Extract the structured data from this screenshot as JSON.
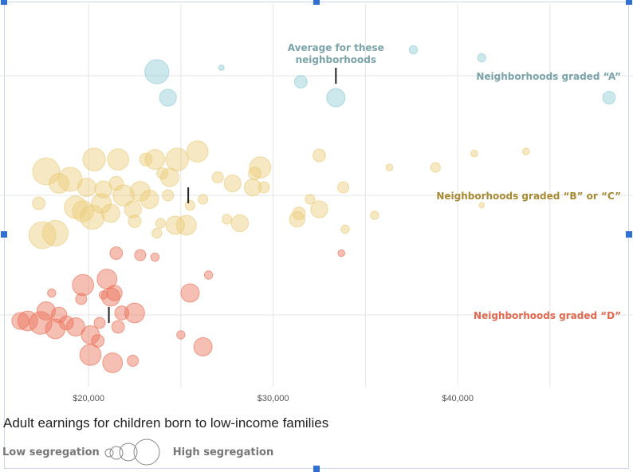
{
  "chart_data": {
    "type": "scatter",
    "title": "",
    "xlabel": "Adult earnings for children born to low-income families",
    "ylabel": "",
    "xlim": [
      15200,
      49500
    ],
    "x_ticks": [
      20000,
      30000,
      40000
    ],
    "x_tick_labels": [
      "$20,000",
      "$30,000",
      "$40,000"
    ],
    "grid": true,
    "legend": {
      "low_label": "Low segregation",
      "high_label": "High segregation"
    },
    "annotation": "Average for these neighborhoods",
    "annotation_lines": [
      "Average for these",
      "neighborhoods"
    ],
    "series": [
      {
        "name": "Neighborhoods graded “A”",
        "color": "#8fcbd4",
        "label_color": "#7aa3a8",
        "average": 33400,
        "points": [
          {
            "x": 24300,
            "y": 0.55,
            "s": 0.45
          },
          {
            "x": 23700,
            "y": -0.1,
            "s": 0.7
          },
          {
            "x": 27200,
            "y": -0.2,
            "s": 0.05
          },
          {
            "x": 31500,
            "y": 0.15,
            "s": 0.3
          },
          {
            "x": 33400,
            "y": 0.55,
            "s": 0.5
          },
          {
            "x": 37600,
            "y": -0.65,
            "s": 0.15
          },
          {
            "x": 41300,
            "y": -0.45,
            "s": 0.15
          },
          {
            "x": 48200,
            "y": 0.55,
            "s": 0.3
          }
        ]
      },
      {
        "name": "Neighborhoods graded “B” or “C”",
        "color": "#eacb78",
        "label_color": "#a88a33",
        "average": 25400,
        "points": [
          {
            "x": 17500,
            "y": 1.0,
            "s": 0.8
          },
          {
            "x": 18200,
            "y": 0.95,
            "s": 0.75
          },
          {
            "x": 17300,
            "y": 0.2,
            "s": 0.3
          },
          {
            "x": 17700,
            "y": -0.6,
            "s": 0.8
          },
          {
            "x": 18400,
            "y": -0.3,
            "s": 0.55
          },
          {
            "x": 19000,
            "y": -0.4,
            "s": 0.7
          },
          {
            "x": 19300,
            "y": 0.3,
            "s": 0.65
          },
          {
            "x": 19700,
            "y": 0.4,
            "s": 0.6
          },
          {
            "x": 20200,
            "y": 0.55,
            "s": 0.7
          },
          {
            "x": 20700,
            "y": 0.2,
            "s": 0.55
          },
          {
            "x": 19900,
            "y": -0.2,
            "s": 0.5
          },
          {
            "x": 20300,
            "y": -0.9,
            "s": 0.65
          },
          {
            "x": 20800,
            "y": -0.15,
            "s": 0.45
          },
          {
            "x": 21200,
            "y": 0.45,
            "s": 0.5
          },
          {
            "x": 21500,
            "y": -0.3,
            "s": 0.35
          },
          {
            "x": 21600,
            "y": -0.9,
            "s": 0.6
          },
          {
            "x": 21900,
            "y": 0.0,
            "s": 0.6
          },
          {
            "x": 22400,
            "y": 0.35,
            "s": 0.45
          },
          {
            "x": 22500,
            "y": 0.65,
            "s": 0.3
          },
          {
            "x": 22800,
            "y": -0.1,
            "s": 0.55
          },
          {
            "x": 23100,
            "y": -0.9,
            "s": 0.3
          },
          {
            "x": 23300,
            "y": 0.1,
            "s": 0.5
          },
          {
            "x": 23600,
            "y": -0.9,
            "s": 0.55
          },
          {
            "x": 23700,
            "y": 0.95,
            "s": 0.2
          },
          {
            "x": 23900,
            "y": 0.7,
            "s": 0.2
          },
          {
            "x": 24000,
            "y": -0.55,
            "s": 0.25
          },
          {
            "x": 24300,
            "y": 0.0,
            "s": 0.25
          },
          {
            "x": 24400,
            "y": -0.45,
            "s": 0.5
          },
          {
            "x": 24700,
            "y": 0.75,
            "s": 0.5
          },
          {
            "x": 24800,
            "y": -0.9,
            "s": 0.65
          },
          {
            "x": 25300,
            "y": 0.75,
            "s": 0.55
          },
          {
            "x": 25500,
            "y": 0.25,
            "s": 0.2
          },
          {
            "x": 25900,
            "y": -1.1,
            "s": 0.6
          },
          {
            "x": 26200,
            "y": 0.1,
            "s": 0.2
          },
          {
            "x": 27000,
            "y": -0.45,
            "s": 0.25
          },
          {
            "x": 27500,
            "y": 0.6,
            "s": 0.2
          },
          {
            "x": 27800,
            "y": -0.3,
            "s": 0.45
          },
          {
            "x": 28200,
            "y": 0.7,
            "s": 0.45
          },
          {
            "x": 28900,
            "y": -0.2,
            "s": 0.45
          },
          {
            "x": 29000,
            "y": -0.55,
            "s": 0.3
          },
          {
            "x": 29300,
            "y": -0.7,
            "s": 0.6
          },
          {
            "x": 29500,
            "y": -0.2,
            "s": 0.25
          },
          {
            "x": 31300,
            "y": 0.6,
            "s": 0.4
          },
          {
            "x": 31400,
            "y": 0.45,
            "s": 0.3
          },
          {
            "x": 32000,
            "y": 0.1,
            "s": 0.2
          },
          {
            "x": 32500,
            "y": 0.35,
            "s": 0.45
          },
          {
            "x": 32500,
            "y": -1.0,
            "s": 0.3
          },
          {
            "x": 33800,
            "y": -0.2,
            "s": 0.25
          },
          {
            "x": 33900,
            "y": 0.85,
            "s": 0.15
          },
          {
            "x": 35500,
            "y": 0.5,
            "s": 0.15
          },
          {
            "x": 36300,
            "y": -0.7,
            "s": 0.1
          },
          {
            "x": 38800,
            "y": -0.7,
            "s": 0.2
          },
          {
            "x": 40900,
            "y": -1.05,
            "s": 0.1
          },
          {
            "x": 41300,
            "y": 0.25,
            "s": 0.05
          },
          {
            "x": 43700,
            "y": -1.1,
            "s": 0.1
          }
        ]
      },
      {
        "name": "Neighborhoods graded “D”",
        "color": "#ec7158",
        "label_color": "#e0694f",
        "average": 21100,
        "points": [
          {
            "x": 16300,
            "y": 0.15,
            "s": 0.45
          },
          {
            "x": 16700,
            "y": 0.15,
            "s": 0.55
          },
          {
            "x": 17400,
            "y": 0.2,
            "s": 0.65
          },
          {
            "x": 17700,
            "y": -0.1,
            "s": 0.5
          },
          {
            "x": 18200,
            "y": 0.35,
            "s": 0.55
          },
          {
            "x": 18400,
            "y": 0.0,
            "s": 0.4
          },
          {
            "x": 18800,
            "y": 0.2,
            "s": 0.35
          },
          {
            "x": 19300,
            "y": 0.3,
            "s": 0.5
          },
          {
            "x": 18000,
            "y": -0.55,
            "s": 0.15
          },
          {
            "x": 19600,
            "y": -0.4,
            "s": 0.25
          },
          {
            "x": 20100,
            "y": 0.5,
            "s": 0.5
          },
          {
            "x": 20100,
            "y": 1.0,
            "s": 0.6
          },
          {
            "x": 19700,
            "y": -0.75,
            "s": 0.6
          },
          {
            "x": 20500,
            "y": 0.65,
            "s": 0.3
          },
          {
            "x": 20600,
            "y": 0.2,
            "s": 0.25
          },
          {
            "x": 20800,
            "y": -0.5,
            "s": 0.15
          },
          {
            "x": 21300,
            "y": 1.2,
            "s": 0.55
          },
          {
            "x": 21000,
            "y": -0.9,
            "s": 0.55
          },
          {
            "x": 21200,
            "y": -0.45,
            "s": 0.5
          },
          {
            "x": 21400,
            "y": -0.55,
            "s": 0.4
          },
          {
            "x": 21500,
            "y": -1.55,
            "s": 0.3
          },
          {
            "x": 21600,
            "y": 0.3,
            "s": 0.3
          },
          {
            "x": 21800,
            "y": -0.05,
            "s": 0.35
          },
          {
            "x": 22400,
            "y": 1.15,
            "s": 0.25
          },
          {
            "x": 22500,
            "y": -0.05,
            "s": 0.55
          },
          {
            "x": 22800,
            "y": -1.5,
            "s": 0.25
          },
          {
            "x": 23600,
            "y": -1.45,
            "s": 0.15
          },
          {
            "x": 25000,
            "y": 0.5,
            "s": 0.15
          },
          {
            "x": 25500,
            "y": -0.55,
            "s": 0.5
          },
          {
            "x": 26200,
            "y": 0.8,
            "s": 0.5
          },
          {
            "x": 26500,
            "y": -1.0,
            "s": 0.15
          },
          {
            "x": 33700,
            "y": -1.55,
            "s": 0.1
          }
        ]
      }
    ]
  }
}
